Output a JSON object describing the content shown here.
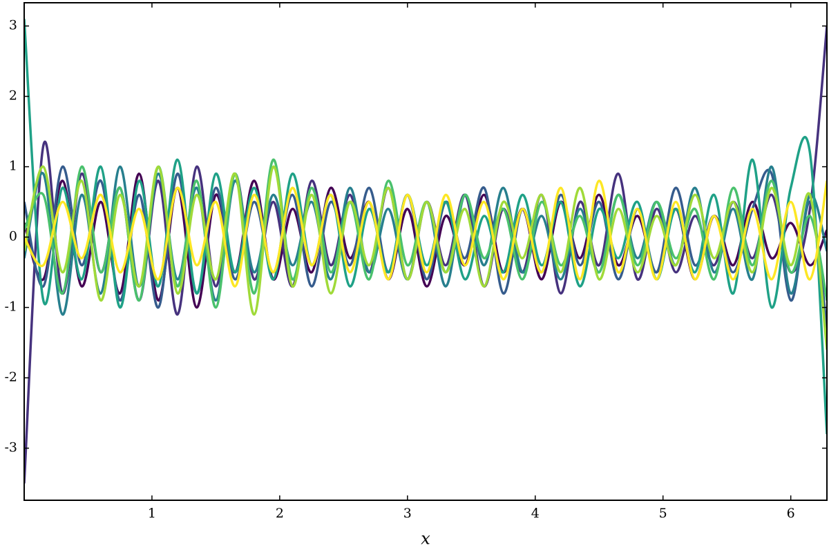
{
  "chart_data": {
    "type": "line",
    "x_label": "x",
    "x": [
      0,
      0.15,
      0.3,
      0.45,
      0.6,
      0.75,
      0.9,
      1.05,
      1.2,
      1.35,
      1.5,
      1.65,
      1.8,
      1.95,
      2.1,
      2.25,
      2.4,
      2.55,
      2.7,
      2.85,
      3.0,
      3.15,
      3.3,
      3.45,
      3.6,
      3.75,
      3.9,
      4.05,
      4.2,
      4.35,
      4.5,
      4.65,
      4.8,
      4.95,
      5.1,
      5.25,
      5.4,
      5.55,
      5.7,
      5.85,
      6.0,
      6.15,
      6.283
    ],
    "series": [
      {
        "color": "#440154",
        "values": [
          0.2,
          -0.6,
          0.8,
          -0.7,
          0.5,
          -0.8,
          0.9,
          -0.9,
          0.7,
          -1.0,
          0.6,
          -0.5,
          0.8,
          -0.6,
          0.4,
          -0.5,
          0.7,
          -0.3,
          0.5,
          -0.6,
          0.4,
          -0.7,
          0.3,
          -0.4,
          0.6,
          -0.5,
          0.4,
          -0.6,
          0.5,
          -0.3,
          0.6,
          -0.4,
          0.3,
          -0.5,
          0.4,
          -0.6,
          0.3,
          -0.4,
          0.5,
          -0.3,
          0.2,
          -0.4,
          0.1
        ]
      },
      {
        "color": "#46327e",
        "values": [
          -3.5,
          1.3,
          -0.8,
          0.9,
          -0.5,
          0.7,
          -0.9,
          0.8,
          -1.1,
          1.0,
          -0.7,
          0.9,
          -0.6,
          0.5,
          -0.7,
          0.8,
          -0.4,
          0.6,
          -0.5,
          0.7,
          -0.6,
          0.5,
          -0.4,
          0.6,
          -0.7,
          0.4,
          -0.5,
          0.6,
          -0.8,
          0.5,
          -0.4,
          0.9,
          -0.6,
          0.4,
          -0.5,
          0.3,
          -0.4,
          0.5,
          -0.3,
          0.6,
          -0.5,
          0.4,
          3.0
        ]
      },
      {
        "color": "#365c8d",
        "values": [
          0.5,
          -0.7,
          1.0,
          -0.4,
          0.8,
          -0.9,
          0.6,
          -1.0,
          0.9,
          -0.8,
          0.7,
          -0.6,
          0.5,
          -0.5,
          0.6,
          -0.7,
          0.5,
          -0.4,
          0.7,
          -0.5,
          0.6,
          -0.6,
          0.5,
          -0.3,
          0.7,
          -0.8,
          0.4,
          -0.5,
          0.6,
          -0.4,
          0.5,
          -0.6,
          0.4,
          -0.5,
          0.7,
          -0.4,
          0.3,
          -0.5,
          0.4,
          0.9,
          -0.9,
          0.5,
          -1.3
        ]
      },
      {
        "color": "#277f8e",
        "values": [
          -0.3,
          0.9,
          -1.1,
          0.6,
          -0.8,
          1.0,
          -0.7,
          0.9,
          -0.6,
          0.7,
          -0.9,
          0.8,
          -0.5,
          0.6,
          -0.4,
          0.5,
          -0.6,
          0.7,
          -0.5,
          0.4,
          -0.6,
          0.5,
          -0.7,
          0.6,
          -0.4,
          0.7,
          -0.5,
          0.3,
          -0.6,
          0.4,
          -0.5,
          0.6,
          -0.3,
          0.5,
          -0.4,
          0.7,
          -0.5,
          0.4,
          -0.6,
          1.0,
          -0.8,
          0.6,
          -0.2
        ]
      },
      {
        "color": "#1fa187",
        "values": [
          3.1,
          -0.9,
          0.7,
          -0.6,
          1.0,
          -1.0,
          0.8,
          -0.7,
          1.1,
          -0.8,
          0.9,
          -0.5,
          0.7,
          -0.6,
          0.9,
          -0.4,
          0.6,
          -0.7,
          0.4,
          -0.5,
          0.6,
          -0.4,
          0.5,
          -0.6,
          0.3,
          -0.5,
          0.6,
          -0.4,
          0.5,
          -0.7,
          0.4,
          -0.3,
          0.5,
          -0.6,
          0.4,
          -0.5,
          0.6,
          -0.8,
          1.1,
          -1.0,
          0.7,
          1.2,
          -2.8
        ]
      },
      {
        "color": "#4ac16d",
        "values": [
          0.1,
          0.6,
          -0.8,
          1.0,
          -0.5,
          0.7,
          -0.9,
          1.0,
          -0.7,
          0.8,
          -1.0,
          0.9,
          -0.8,
          1.1,
          -0.6,
          0.7,
          -0.5,
          0.5,
          -0.6,
          0.8,
          -0.4,
          0.5,
          -0.5,
          0.6,
          -0.3,
          0.4,
          -0.6,
          0.5,
          -0.4,
          0.3,
          -0.5,
          0.6,
          -0.4,
          0.5,
          -0.3,
          0.4,
          -0.6,
          0.7,
          -0.4,
          0.8,
          -0.5,
          0.3,
          -0.9
        ]
      },
      {
        "color": "#a0da39",
        "values": [
          -0.2,
          1.0,
          -0.5,
          0.8,
          -0.9,
          0.6,
          -0.7,
          1.0,
          -0.8,
          0.6,
          -0.6,
          0.9,
          -1.1,
          1.0,
          -0.7,
          0.6,
          -0.8,
          0.5,
          -0.4,
          0.7,
          -0.6,
          0.5,
          -0.5,
          0.4,
          -0.7,
          0.5,
          -0.3,
          0.6,
          -0.5,
          0.7,
          -0.6,
          0.4,
          -0.5,
          0.3,
          -0.4,
          0.6,
          -0.3,
          0.5,
          -0.5,
          0.7,
          -0.4,
          0.6,
          -1.6
        ]
      },
      {
        "color": "#fde725",
        "values": [
          0.0,
          -0.4,
          0.5,
          -0.3,
          0.6,
          -0.5,
          0.4,
          -0.6,
          0.7,
          -0.4,
          0.5,
          -0.7,
          0.6,
          -0.5,
          0.7,
          -0.4,
          0.6,
          -0.5,
          0.5,
          -0.6,
          0.6,
          -0.5,
          0.6,
          -0.4,
          0.5,
          -0.6,
          0.4,
          -0.5,
          0.7,
          -0.6,
          0.8,
          -0.5,
          0.4,
          -0.6,
          0.5,
          -0.6,
          0.3,
          -0.6,
          0.4,
          -0.6,
          0.5,
          -0.6,
          0.8
        ]
      }
    ],
    "xlim": [
      0,
      6.283
    ],
    "ylim": [
      -3.74,
      3.33
    ],
    "xticks": [
      1,
      2,
      3,
      4,
      5,
      6
    ],
    "yticks": [
      -3,
      -2,
      -1,
      0,
      1,
      2,
      3
    ]
  }
}
